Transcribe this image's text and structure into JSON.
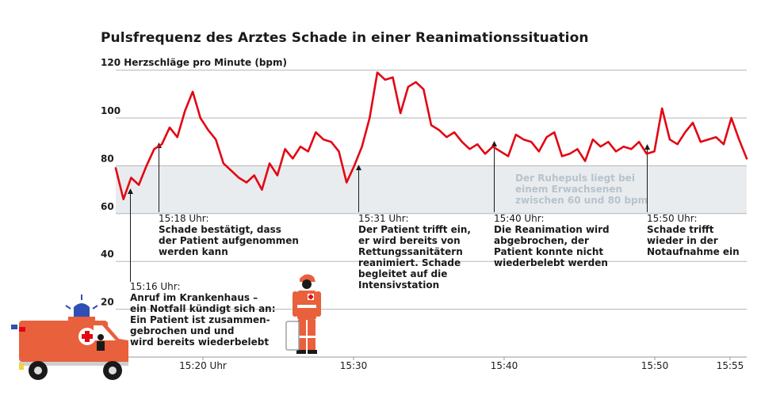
{
  "chart_data": {
    "type": "line",
    "title": "Pulsfrequenz des Arztes Schade in einer Reanimationssituation",
    "ylabel": "120 Herzschläge pro Minute (bpm)",
    "ylim": [
      0,
      120
    ],
    "xlim_minutes": [
      15.0,
      15.95
    ],
    "y_ticks": [
      "100",
      "80",
      "60",
      "40",
      "20"
    ],
    "y_tick_values": [
      100,
      80,
      60,
      40,
      20
    ],
    "x_ticks": [
      {
        "value": "15:20",
        "label": "15:20 Uhr"
      },
      {
        "value": "15:30",
        "label": "15:30"
      },
      {
        "value": "15:40",
        "label": "15:40"
      },
      {
        "value": "15:50",
        "label": "15:50"
      },
      {
        "value": "15:55",
        "label": "15:55"
      }
    ],
    "band": {
      "from": 60,
      "to": 80,
      "color": "#e9ecee",
      "label_lines": [
        "Der Ruhepuls liegt bei",
        "einem Erwachsenen",
        "zwischen 60 und 80 bpm"
      ]
    },
    "line_color": "#e30613",
    "series": [
      {
        "x": [
          "15:15",
          "15:15.5",
          "15:16",
          "15:16.5",
          "15:17",
          "15:17.5",
          "15:18",
          "15:18.5",
          "15:19",
          "15:19.5",
          "15:20",
          "15:20.5",
          "15:21",
          "15:21.5",
          "15:22",
          "15:22.5",
          "15:23",
          "15:23.5",
          "15:24",
          "15:24.5",
          "15:25",
          "15:25.5",
          "15:26",
          "15:26.5",
          "15:27",
          "15:27.5",
          "15:28",
          "15:28.5",
          "15:29",
          "15:29.5",
          "15:30",
          "15:30.5",
          "15:31",
          "15:31.5",
          "15:32",
          "15:32.5",
          "15:33",
          "15:33.5",
          "15:34",
          "15:34.5",
          "15:35",
          "15:35.5",
          "15:36",
          "15:36.5",
          "15:37",
          "15:37.5",
          "15:38",
          "15:38.5",
          "15:39",
          "15:39.5",
          "15:40",
          "15:40.5",
          "15:41",
          "15:41.5",
          "15:42",
          "15:42.5",
          "15:43",
          "15:43.5",
          "15:44",
          "15:44.5",
          "15:45",
          "15:45.5",
          "15:46",
          "15:46.5",
          "15:47",
          "15:47.5",
          "15:48",
          "15:48.5",
          "15:49",
          "15:49.5",
          "15:50",
          "15:50.5",
          "15:51",
          "15:51.5",
          "15:52",
          "15:52.5",
          "15:53",
          "15:53.5",
          "15:54",
          "15:54.5",
          "15:55",
          "15:55.5",
          "15:56"
        ],
        "values": [
          79,
          66,
          75,
          72,
          80,
          87,
          89,
          96,
          92,
          103,
          111,
          100,
          95,
          91,
          81,
          78,
          75,
          73,
          76,
          70,
          81,
          76,
          87,
          83,
          88,
          86,
          94,
          91,
          90,
          86,
          73,
          80,
          88,
          100,
          119,
          116,
          117,
          102,
          113,
          115,
          112,
          97,
          95,
          92,
          94,
          90,
          87,
          89,
          85,
          88,
          86,
          84,
          93,
          91,
          90,
          86,
          92,
          94,
          84,
          85,
          87,
          82,
          91,
          88,
          90,
          86,
          88,
          87,
          90,
          85,
          86,
          104,
          91,
          89,
          94,
          98,
          90,
          91,
          92,
          89,
          100,
          91,
          83
        ]
      }
    ],
    "annotations": [
      {
        "time": "15:16 Uhr:",
        "lines": [
          "Anruf im Krankenhaus –",
          "ein Notfall kündigt sich an:",
          "Ein Patient ist zusammen-",
          "gebrochen und und",
          "wird bereits wiederbelebt"
        ]
      },
      {
        "time": "15:18 Uhr:",
        "lines": [
          "Schade bestätigt, dass",
          "der Patient aufgenommen",
          "werden kann"
        ]
      },
      {
        "time": "15:31 Uhr:",
        "lines": [
          "Der Patient trifft ein,",
          "er wird bereits von",
          "Rettungssanitätern",
          "reanimiert. Schade",
          "begleitet auf die",
          "Intensivstation"
        ]
      },
      {
        "time": "15:40 Uhr:",
        "lines": [
          "Die Reanimation wird",
          "abgebrochen, der",
          "Patient konnte nicht",
          "wiederbelebt werden"
        ]
      },
      {
        "time": "15:50 Uhr:",
        "lines": [
          "Schade trifft",
          "wieder in der",
          "Notaufnahme ein"
        ]
      }
    ]
  },
  "illustration_colors": {
    "ambulance": "#e8603c",
    "siren": "#2f4fb4",
    "paramedic": "#e8603c",
    "cross": "#e30613"
  }
}
